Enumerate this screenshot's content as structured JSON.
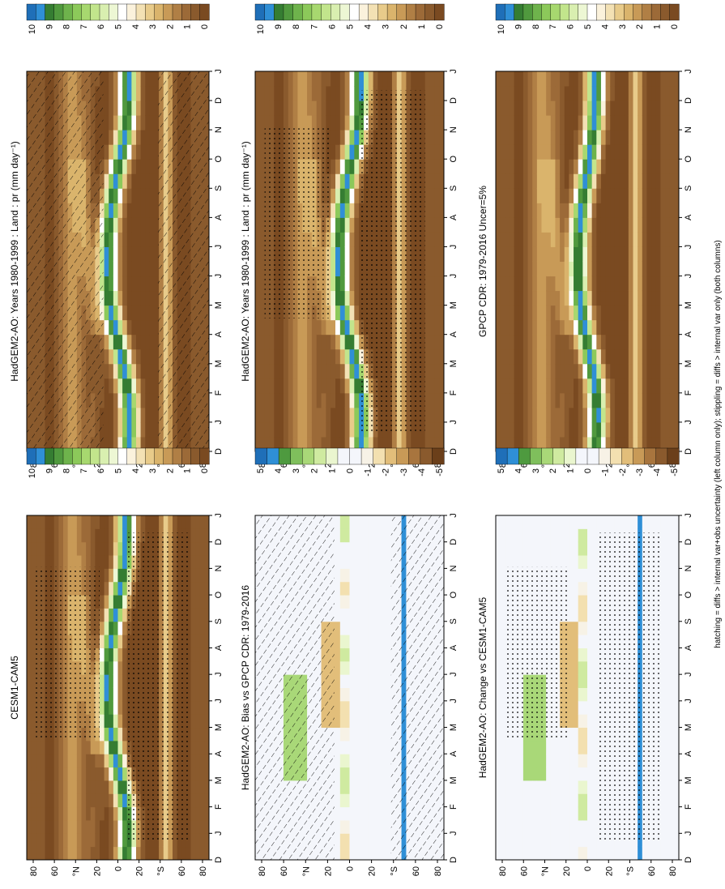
{
  "figure_footnote": "hatching = diffs > internal var+obs uncertainty (left column only); stippling = diffs > internal var only (both columns)",
  "colors": {
    "precip_scale": [
      "#7a4a21",
      "#8a5a2d",
      "#9c6a38",
      "#b07f45",
      "#c89a57",
      "#dab46c",
      "#e8cb8a",
      "#f3e1b4",
      "#fbf2dc",
      "#ffffff",
      "#edf7d4",
      "#d9efb0",
      "#c2e58c",
      "#a7d86f",
      "#8cc95a",
      "#6eb34c",
      "#50993e",
      "#357d32",
      "#2f8fd6",
      "#1f6fb8"
    ],
    "diff_scale": [
      "#6b3f1a",
      "#8a5a2d",
      "#a8753e",
      "#c89a57",
      "#e2be7a",
      "#f3e0b0",
      "#f7f2e6",
      "#f4f6fb",
      "#f4f6fb",
      "#eaf6cf",
      "#cfeaa0",
      "#a9d878",
      "#7fbf5c",
      "#4e9a3f",
      "#2f8fd6",
      "#1f6fb8"
    ],
    "background_diff": "#f4f6fb"
  },
  "chart_data": [
    {
      "type": "heatmap",
      "title": "HadGEM2-AO: Years 1980-1999 : Land : pr (mm day⁻¹)",
      "x_ticks": [
        "D",
        "J",
        "F",
        "M",
        "A",
        "M",
        "J",
        "J",
        "A",
        "S",
        "O",
        "N",
        "D",
        "J"
      ],
      "y_ticks": [
        "80",
        "60",
        "°N",
        "20",
        "0",
        "20",
        "°S",
        "60",
        "80"
      ],
      "colorbar": {
        "labels": [
          "10",
          "9",
          "8",
          "7",
          "6",
          "5",
          "4",
          "3",
          "2",
          "1",
          "0"
        ],
        "range": [
          0,
          10
        ],
        "units": "mm day-1"
      },
      "overlay": "hatching",
      "itcz_lat_by_month": [
        -10,
        -12,
        -10,
        -5,
        2,
        8,
        10,
        10,
        8,
        4,
        -2,
        -8,
        -10
      ]
    },
    {
      "type": "heatmap",
      "title": "HadGEM2-AO: Years 1980-1999 : Land : pr (mm day⁻¹)",
      "x_ticks": [
        "D",
        "J",
        "F",
        "M",
        "A",
        "M",
        "J",
        "J",
        "A",
        "S",
        "O",
        "N",
        "D",
        "J"
      ],
      "y_ticks": [
        "80",
        "60",
        "°N",
        "20",
        "0",
        "20",
        "°S",
        "60",
        "80"
      ],
      "colorbar": {
        "labels": [
          "10",
          "9",
          "8",
          "7",
          "6",
          "5",
          "4",
          "3",
          "2",
          "1",
          "0"
        ],
        "range": [
          0,
          10
        ]
      },
      "overlay": "stippling",
      "itcz_lat_by_month": [
        -10,
        -12,
        -10,
        -5,
        2,
        8,
        10,
        10,
        8,
        4,
        -2,
        -8,
        -10
      ]
    },
    {
      "type": "heatmap",
      "title": "GPCP CDR: 1979-2016 Uncer=5%",
      "x_ticks": [
        "D",
        "J",
        "F",
        "M",
        "A",
        "M",
        "J",
        "J",
        "A",
        "S",
        "O",
        "N",
        "D",
        "J"
      ],
      "y_ticks": [
        "80",
        "60",
        "°N",
        "20",
        "0",
        "20",
        "°S",
        "60",
        "80"
      ],
      "colorbar": {
        "labels": [
          "10",
          "9",
          "8",
          "7",
          "6",
          "5",
          "4",
          "3",
          "2",
          "1",
          "0"
        ],
        "range": [
          0,
          10
        ]
      },
      "overlay": "none",
      "itcz_lat_by_month": [
        -8,
        -10,
        -9,
        -4,
        2,
        7,
        9,
        9,
        7,
        3,
        -2,
        -6,
        -8
      ]
    },
    {
      "type": "heatmap",
      "title": "CESM1-CAM5",
      "x_ticks": [
        "D",
        "J",
        "F",
        "M",
        "A",
        "M",
        "J",
        "J",
        "A",
        "S",
        "O",
        "N",
        "D",
        "J"
      ],
      "y_ticks": [
        "80",
        "60",
        "°N",
        "20",
        "0",
        "20",
        "°S",
        "60",
        "80"
      ],
      "colorbar": {
        "labels": [
          "10",
          "9",
          "8",
          "7",
          "6",
          "5",
          "4",
          "3",
          "2",
          "1",
          "0"
        ],
        "range": [
          0,
          10
        ]
      },
      "overlay": "stippling",
      "itcz_lat_by_month": [
        -8,
        -10,
        -8,
        -3,
        3,
        8,
        10,
        10,
        8,
        4,
        -1,
        -6,
        -8
      ]
    },
    {
      "type": "heatmap",
      "title": "HadGEM2-AO: Bias vs GPCP CDR: 1979-2016",
      "x_ticks": [
        "D",
        "J",
        "F",
        "M",
        "A",
        "M",
        "J",
        "J",
        "A",
        "S",
        "O",
        "N",
        "D",
        "J"
      ],
      "y_ticks": [
        "80",
        "60",
        "°N",
        "20",
        "0",
        "20",
        "°S",
        "60",
        "80"
      ],
      "colorbar": {
        "labels": [
          "5",
          "4",
          "3",
          "2",
          "1",
          "0",
          "-1",
          "-2",
          "-3",
          "-4",
          "-5"
        ],
        "range": [
          -5,
          5
        ]
      },
      "overlay": "hatching"
    },
    {
      "type": "heatmap",
      "title": "HadGEM2-AO: Change vs CESM1-CAM5",
      "x_ticks": [
        "D",
        "J",
        "F",
        "M",
        "A",
        "M",
        "J",
        "J",
        "A",
        "S",
        "O",
        "N",
        "D",
        "J"
      ],
      "y_ticks": [
        "80",
        "60",
        "°N",
        "20",
        "0",
        "20",
        "°S",
        "60",
        "80"
      ],
      "colorbar": {
        "labels": [
          "5",
          "4",
          "3",
          "2",
          "1",
          "0",
          "-1",
          "-2",
          "-3",
          "-4",
          "-5"
        ],
        "range": [
          -5,
          5
        ]
      },
      "overlay": "stippling"
    }
  ]
}
